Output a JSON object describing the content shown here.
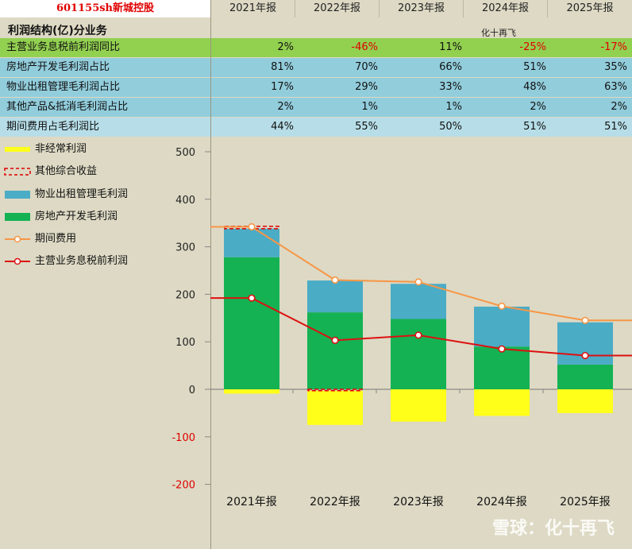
{
  "header": {
    "title": "601155sh新城控股",
    "years": [
      "2021年报",
      "2022年报",
      "2023年报",
      "2024年报",
      "2025年报"
    ]
  },
  "subheader": {
    "section": "利润结构(亿)分业务",
    "author": "化十再飞"
  },
  "table": {
    "rows": [
      {
        "label": "主营业务息税前利润同比",
        "values": [
          "2%",
          "-46%",
          "11%",
          "-25%",
          "-17%"
        ],
        "color": "#92d050"
      },
      {
        "label": "房地产开发毛利润占比",
        "values": [
          "81%",
          "70%",
          "66%",
          "51%",
          "35%"
        ],
        "color": "#92cddc"
      },
      {
        "label": "物业出租管理毛利润占比",
        "values": [
          "17%",
          "29%",
          "33%",
          "48%",
          "63%"
        ],
        "color": "#92cddc"
      },
      {
        "label": "其他产品&抵消毛利润占比",
        "values": [
          "2%",
          "1%",
          "1%",
          "2%",
          "2%"
        ],
        "color": "#92cddc"
      },
      {
        "label": "期间费用占毛利润比",
        "values": [
          "44%",
          "55%",
          "50%",
          "51%",
          "51%"
        ],
        "color": "#b7dee8"
      }
    ]
  },
  "legend": [
    {
      "label": "非经常利润",
      "icon": "yellow-bar-icon"
    },
    {
      "label": "其他综合收益",
      "icon": "red-dashed-box-icon"
    },
    {
      "label": "物业出租管理毛利润",
      "icon": "blue-bar-icon"
    },
    {
      "label": "房地产开发毛利润",
      "icon": "green-bar-icon"
    },
    {
      "label": "期间费用",
      "icon": "orange-line-marker-icon"
    },
    {
      "label": "主营业务息税前利润",
      "icon": "red-line-marker-icon"
    }
  ],
  "colors": {
    "nonrecurring": "#ffff1a",
    "oci": "#e00000",
    "property_rental": "#4bacc6",
    "real_estate": "#14b253",
    "period_expense": "#f79646",
    "ebit": "#dd1111"
  },
  "chart_data": {
    "type": "bar",
    "stacked": true,
    "categories": [
      "2021年报",
      "2022年报",
      "2023年报",
      "2024年报",
      "2025年报"
    ],
    "ylim": [
      -200,
      500
    ],
    "yticks": [
      500,
      400,
      300,
      200,
      100,
      0,
      -100,
      -200
    ],
    "series": [
      {
        "name": "房地产开发毛利润",
        "kind": "bar",
        "values": [
          278,
          162,
          148,
          90,
          52
        ]
      },
      {
        "name": "物业出租管理毛利润",
        "kind": "bar",
        "values": [
          60,
          67,
          74,
          84,
          89
        ]
      },
      {
        "name": "其他综合收益",
        "kind": "dashed-box",
        "values": [
          5,
          -3,
          0,
          0,
          0
        ]
      },
      {
        "name": "非经常利润",
        "kind": "bar",
        "values": [
          -9,
          -72,
          -68,
          -56,
          -50
        ]
      },
      {
        "name": "期间费用",
        "kind": "line",
        "values": [
          342,
          230,
          226,
          175,
          145
        ]
      },
      {
        "name": "主营业务息税前利润",
        "kind": "line",
        "values": [
          192,
          103,
          114,
          85,
          71
        ]
      }
    ],
    "watermark": "雪球：化十再飞"
  }
}
